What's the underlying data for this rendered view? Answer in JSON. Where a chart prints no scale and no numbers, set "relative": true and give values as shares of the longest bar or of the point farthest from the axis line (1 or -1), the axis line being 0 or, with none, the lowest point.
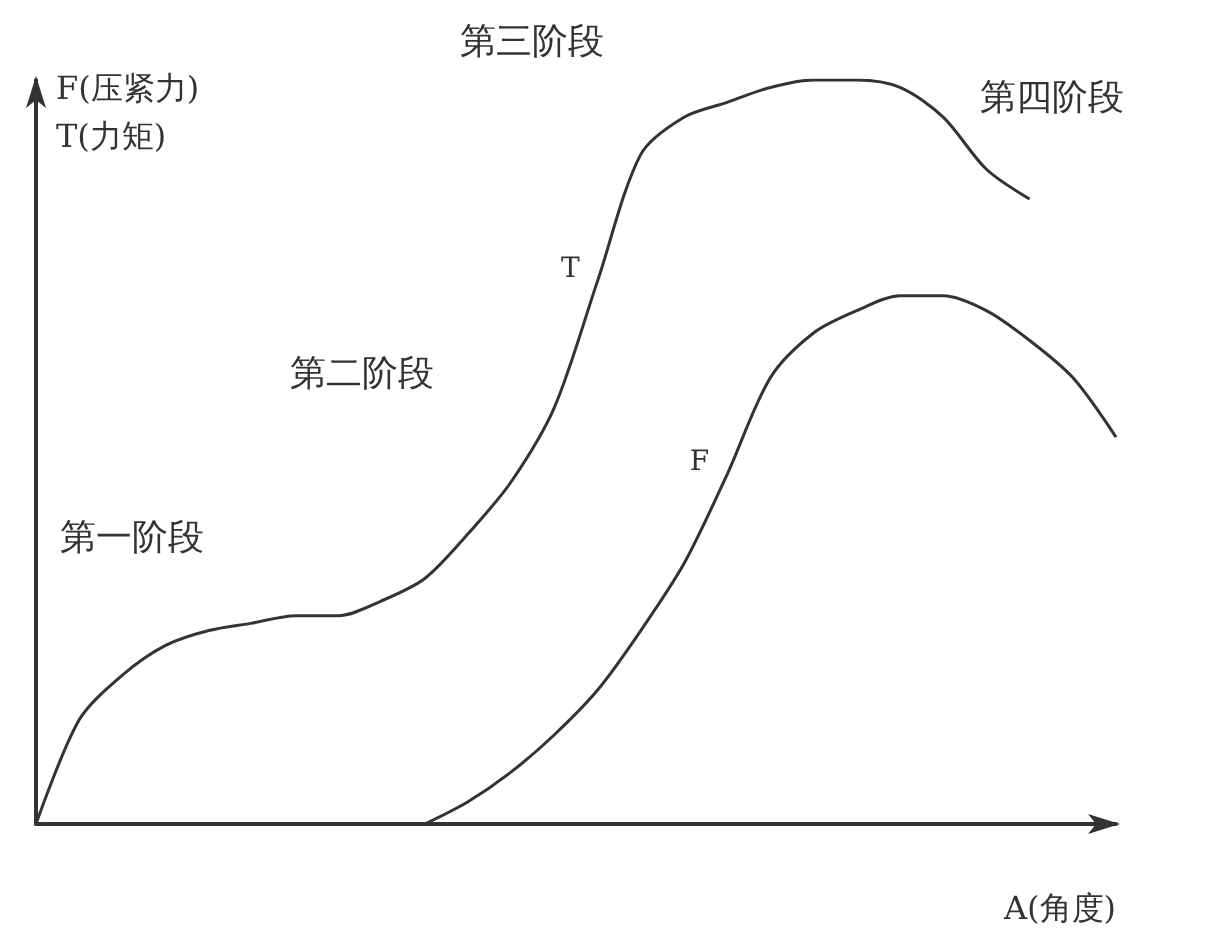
{
  "chart_data": {
    "type": "line",
    "relative": true,
    "xlabel": "A(角度)",
    "ylabel": "F(压紧力)\nT(力矩)",
    "marker": "none",
    "grid": false,
    "legend": false,
    "annotations": [
      "第一阶段",
      "第二阶段",
      "第三阶段",
      "第四阶段"
    ],
    "categories": [
      null,
      null,
      null,
      null,
      null,
      null,
      null,
      null,
      null,
      null,
      null,
      null,
      null,
      null,
      null,
      null,
      null,
      null,
      null,
      null,
      null,
      null,
      null,
      null,
      null,
      null
    ],
    "series": [
      {
        "name": "T",
        "color": "#333333",
        "values": [
          0,
          0.14,
          0.2,
          0.24,
          0.26,
          0.27,
          0.28,
          0.28,
          0.3,
          0.33,
          0.39,
          0.46,
          0.56,
          0.73,
          0.9,
          0.95,
          0.97,
          0.99,
          1,
          1,
          0.99,
          0.95,
          0.88,
          0.84,
          null,
          null
        ]
      },
      {
        "name": "F",
        "color": "#333333",
        "values": [
          null,
          null,
          null,
          null,
          null,
          null,
          null,
          null,
          null,
          0,
          0.03,
          0.07,
          0.12,
          0.18,
          0.26,
          0.35,
          0.47,
          0.6,
          0.66,
          0.69,
          0.71,
          0.71,
          0.69,
          0.65,
          0.6,
          0.52
        ]
      }
    ]
  }
}
